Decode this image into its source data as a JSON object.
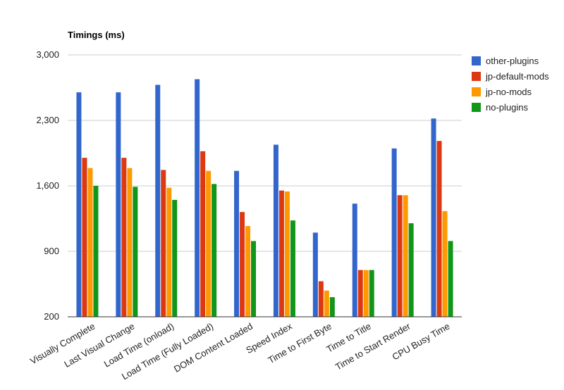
{
  "chart_data": {
    "type": "bar",
    "title": "Timings (ms)",
    "xlabel": "",
    "ylabel": "",
    "ylim": [
      200,
      3000
    ],
    "yticks": [
      200,
      900,
      1600,
      2300,
      3000
    ],
    "ytick_labels": [
      "200",
      "900",
      "1,600",
      "2,300",
      "3,000"
    ],
    "grid": true,
    "legend_position": "right",
    "categories": [
      "Visually Complete",
      "Last Visual Change",
      "Load Time (onload)",
      "Load Time (Fully Loaded)",
      "DOM Content Loaded",
      "Speed Index",
      "Time to First Byte",
      "Time to Title",
      "Time to Start Render",
      "CPU Busy Time"
    ],
    "series": [
      {
        "name": "other-plugins",
        "color": "#3366cc",
        "values": [
          2600,
          2600,
          2680,
          2740,
          1760,
          2040,
          1100,
          1410,
          2000,
          2320
        ]
      },
      {
        "name": "jp-default-mods",
        "color": "#dc3912",
        "values": [
          1900,
          1900,
          1770,
          1970,
          1320,
          1550,
          580,
          700,
          1500,
          2080
        ]
      },
      {
        "name": "jp-no-mods",
        "color": "#ff9900",
        "values": [
          1790,
          1790,
          1580,
          1760,
          1170,
          1540,
          480,
          700,
          1500,
          1330
        ]
      },
      {
        "name": "no-plugins",
        "color": "#109618",
        "values": [
          1600,
          1590,
          1450,
          1620,
          1010,
          1230,
          410,
          700,
          1200,
          1010
        ]
      }
    ]
  }
}
